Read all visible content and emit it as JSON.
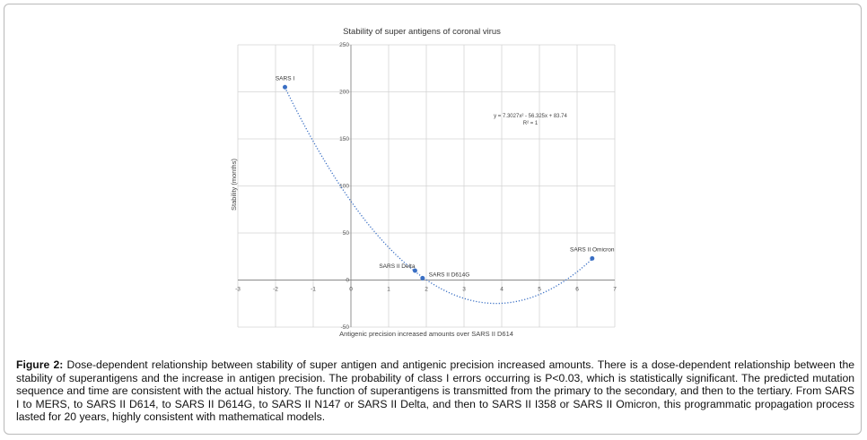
{
  "chart_data": {
    "type": "scatter",
    "title": "Stability of super antigens of coronal virus",
    "xlabel": "Antigenic precision increased amounts over SARS II D614",
    "ylabel": "Stability (months)",
    "xlim": [
      -3,
      7
    ],
    "ylim": [
      -50,
      250
    ],
    "xticks": [
      "-3",
      "-2",
      "-1",
      "0",
      "1",
      "2",
      "3",
      "4",
      "5",
      "6",
      "7"
    ],
    "yticks": [
      "-50",
      "0",
      "50",
      "100",
      "150",
      "200",
      "250"
    ],
    "grid": true,
    "points": [
      {
        "label": "SARS I",
        "x": -1.75,
        "y": 205
      },
      {
        "label": "SARS II Delta",
        "x": 1.7,
        "y": 10
      },
      {
        "label": "SARS II D614G",
        "x": 1.9,
        "y": 2
      },
      {
        "label": "SARS II Omicron",
        "x": 6.4,
        "y": 23
      }
    ],
    "trendline": {
      "type": "polynomial",
      "coefficients": [
        7.3027,
        -56.325,
        83.74
      ],
      "equation": "y = 7.3027x² - 56.325x + 83.74",
      "r2": "R² = 1"
    },
    "colors": {
      "points": "#3a6fc4",
      "trendline": "#3a6fc4",
      "grid": "#d4d4d4"
    }
  },
  "caption": {
    "label": "Figure 2:",
    "text": " Dose-dependent relationship between stability of super antigen and antigenic precision increased amounts. There is a dose-dependent relationship between the stability of superantigens and the increase in antigen precision. The probability of class I errors occurring is P<0.03, which is statistically significant. The predicted mutation sequence and time are consistent with the actual history. The function of superantigens is transmitted from the primary to the secondary, and then to the tertiary. From SARS I to MERS, to SARS II D614, to SARS II D614G, to SARS II N147 or SARS II Delta, and then to SARS II I358 or SARS II Omicron, this programmatic propagation process lasted for 20 years, highly consistent with mathematical models."
  }
}
